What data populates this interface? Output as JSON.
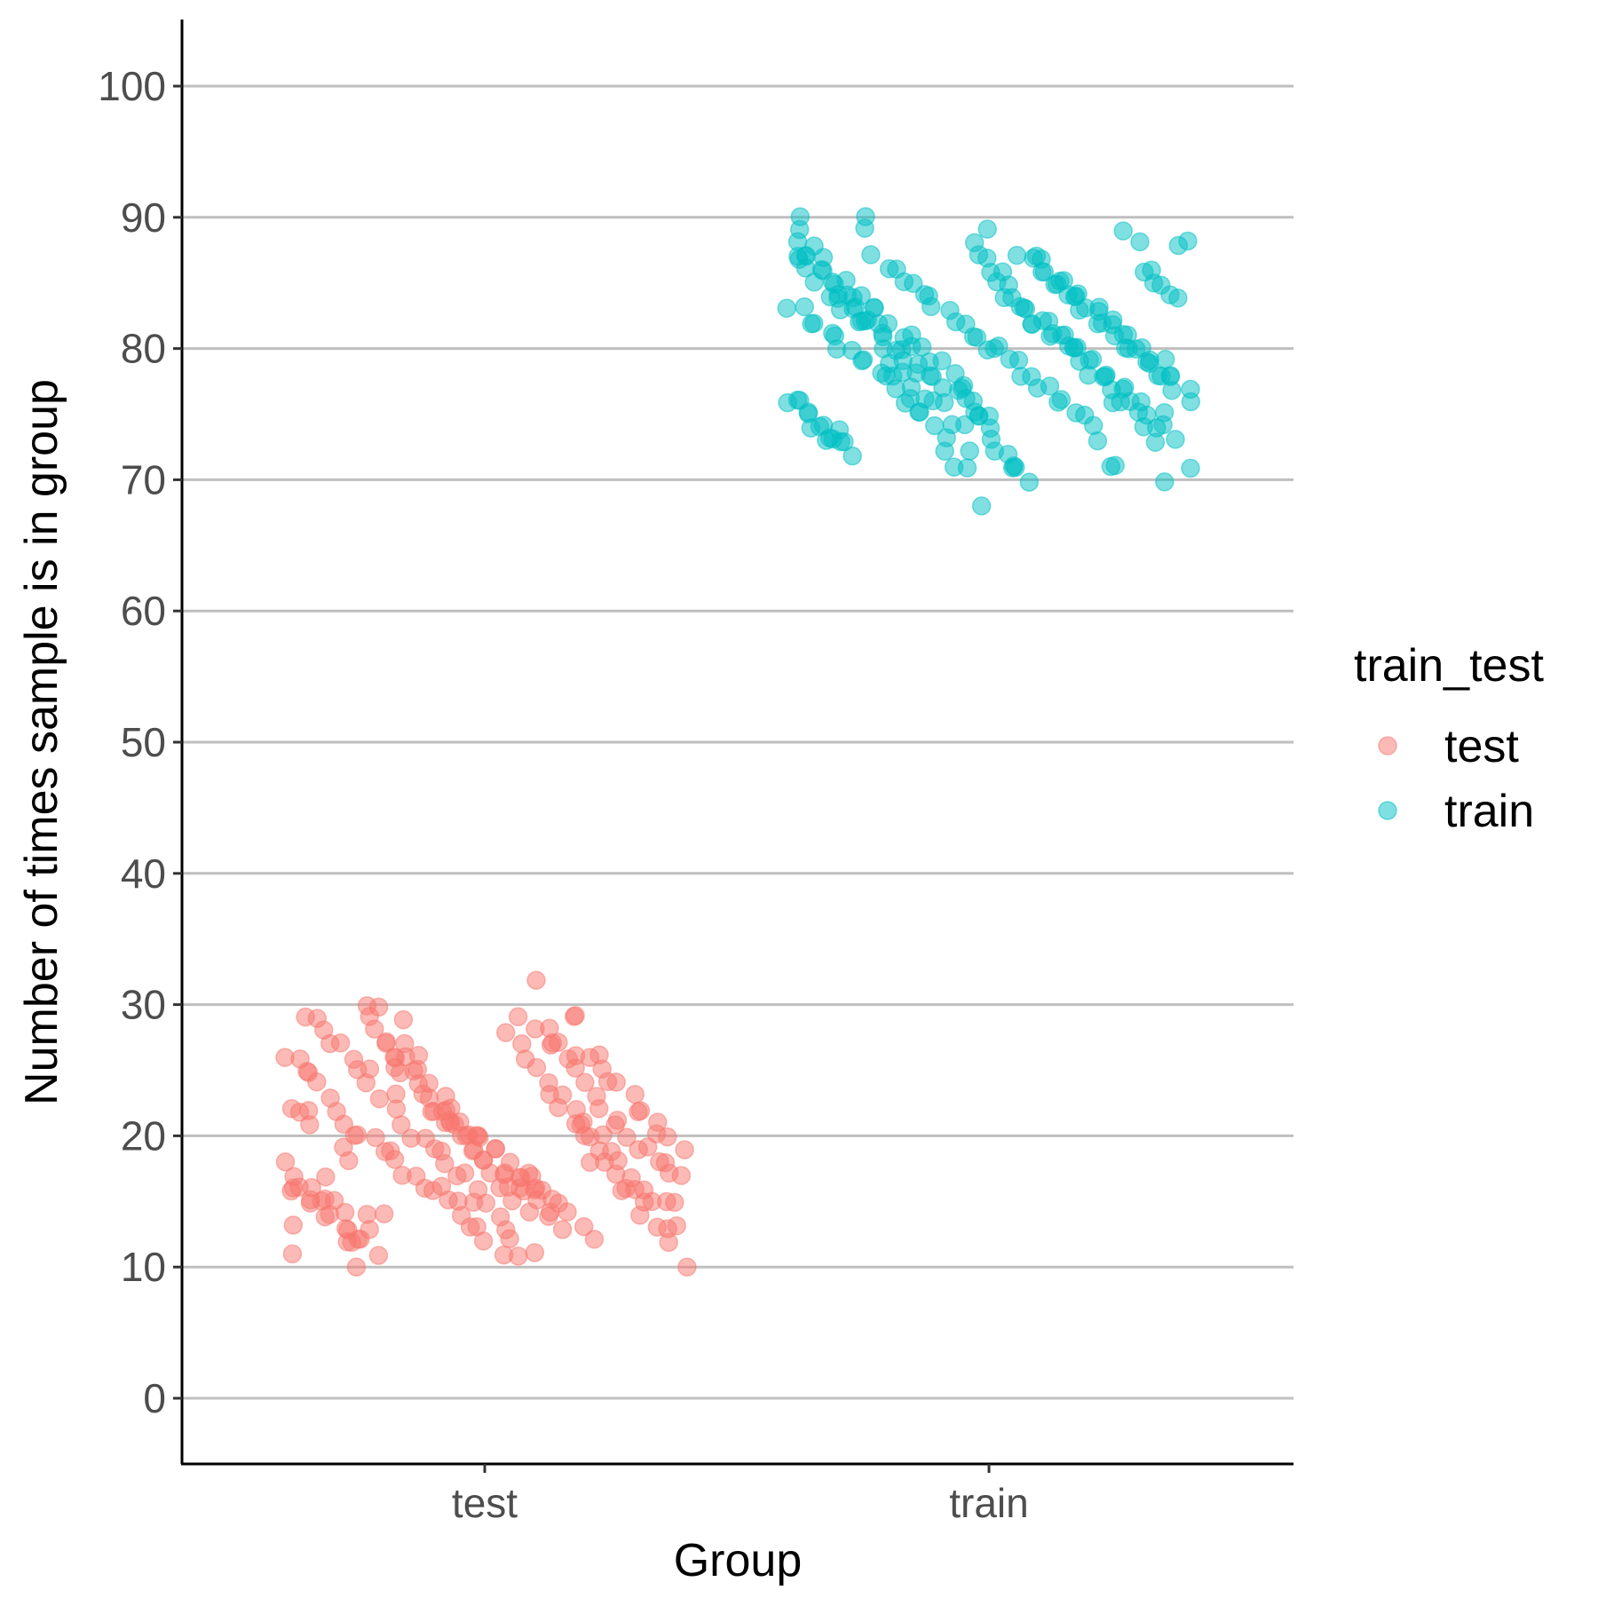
{
  "chart_data": {
    "type": "scatter",
    "title": "",
    "xlabel": "Group",
    "ylabel": "Number of times sample is in group",
    "categories": [
      "test",
      "train"
    ],
    "ylim": [
      -5,
      105
    ],
    "yticks": [
      0,
      10,
      20,
      30,
      40,
      50,
      60,
      70,
      80,
      90,
      100
    ],
    "grid": "horizontal-major",
    "legend": {
      "title": "train_test",
      "position": "right",
      "entries": [
        {
          "label": "test",
          "color": "#F8766D"
        },
        {
          "label": "train",
          "color": "#00BFC4"
        }
      ]
    },
    "series": [
      {
        "name": "test",
        "category": "test",
        "color": "#F8766D",
        "y": [
          22,
          22,
          22,
          21,
          17,
          15,
          19,
          18,
          12,
          13,
          14,
          14,
          27,
          29,
          27,
          26,
          25,
          24,
          23,
          22,
          21,
          20,
          19,
          18,
          17,
          16,
          16,
          15,
          17,
          14,
          28,
          28,
          27,
          23,
          22,
          21,
          20,
          18,
          18,
          17,
          16,
          16,
          15,
          14,
          13,
          13,
          12,
          10,
          26,
          26,
          25,
          25,
          24,
          23,
          22,
          21,
          20,
          20,
          20,
          19,
          19,
          18,
          17,
          17,
          16,
          16,
          16,
          15,
          15,
          14,
          13,
          13,
          12,
          11,
          28,
          29,
          27,
          26,
          25,
          24,
          23,
          22,
          21,
          21,
          20,
          20,
          19,
          19,
          18,
          17,
          16,
          16,
          15,
          15,
          15,
          13,
          13,
          11,
          29,
          29,
          28,
          27,
          27,
          26,
          25,
          25,
          24,
          23,
          23,
          22,
          21,
          20,
          20,
          19,
          19,
          18,
          17,
          17,
          16,
          15,
          15,
          14,
          13,
          12,
          11,
          11,
          32,
          27,
          27,
          26,
          26,
          25,
          24,
          23,
          22,
          21,
          21,
          20,
          19,
          19,
          18,
          18,
          17,
          17,
          16,
          16,
          15,
          15,
          14,
          14,
          13,
          12,
          10,
          30,
          29,
          28,
          26,
          25,
          25,
          24,
          23,
          22,
          22,
          21,
          21,
          20,
          20,
          19,
          18,
          17,
          17,
          16,
          16,
          16,
          15,
          14,
          14,
          13,
          29,
          29,
          26,
          26,
          25,
          24,
          24,
          23,
          22,
          22,
          21,
          20,
          20,
          19,
          18,
          17,
          16,
          16,
          15,
          15,
          14,
          13,
          12,
          12,
          11,
          30,
          27,
          26,
          26,
          25,
          23,
          22,
          22,
          21,
          21,
          20,
          20,
          20,
          19,
          19,
          18,
          17,
          17,
          17,
          16,
          16,
          15,
          15,
          14,
          13,
          12
        ]
      },
      {
        "name": "train",
        "category": "train",
        "color": "#00BFC4",
        "y": [
          90,
          87,
          87,
          86,
          84,
          84,
          84,
          83,
          82,
          82,
          80,
          79,
          78,
          78,
          78,
          77,
          76,
          76,
          76,
          74,
          74,
          72,
          88,
          87,
          86,
          86,
          85,
          84,
          83,
          82,
          82,
          81,
          81,
          80,
          80,
          79,
          78,
          78,
          77,
          76,
          76,
          75,
          74,
          74,
          73,
          70,
          88,
          88,
          87,
          87,
          86,
          85,
          85,
          84,
          83,
          83,
          82,
          82,
          81,
          81,
          80,
          80,
          79,
          79,
          78,
          78,
          77,
          77,
          76,
          75,
          75,
          74,
          73,
          72,
          71,
          71,
          70,
          87,
          86,
          85,
          85,
          84,
          84,
          83,
          83,
          82,
          82,
          81,
          81,
          80,
          80,
          79,
          79,
          78,
          78,
          77,
          76,
          76,
          75,
          74,
          73,
          73,
          73,
          72,
          90,
          89,
          87,
          86,
          86,
          85,
          85,
          84,
          84,
          83,
          83,
          82,
          82,
          81,
          81,
          80,
          80,
          80,
          79,
          79,
          78,
          78,
          77,
          77,
          76,
          76,
          75,
          75,
          74,
          73,
          71,
          71,
          89,
          88,
          86,
          86,
          85,
          85,
          84,
          84,
          83,
          83,
          82,
          82,
          81,
          81,
          80,
          80,
          79,
          79,
          78,
          78,
          77,
          76,
          76,
          75,
          75,
          74,
          73,
          72,
          71,
          71,
          68,
          89,
          87,
          85,
          84,
          83,
          83,
          82,
          82,
          81,
          81,
          80,
          80,
          79,
          79,
          78,
          78,
          77,
          77,
          76,
          76,
          75,
          75,
          74,
          73,
          71,
          89,
          88,
          88,
          87,
          86,
          85,
          85,
          84,
          84,
          83,
          83,
          82,
          82,
          81,
          81,
          80,
          80,
          79,
          79,
          78,
          77,
          77,
          76,
          75,
          75,
          72,
          71,
          87,
          87,
          87,
          86,
          85,
          85,
          84,
          84,
          83,
          83,
          82,
          82,
          81,
          80,
          80,
          79,
          79,
          78,
          78,
          77,
          76,
          76,
          75,
          74,
          74,
          73,
          73,
          74
        ]
      }
    ]
  }
}
